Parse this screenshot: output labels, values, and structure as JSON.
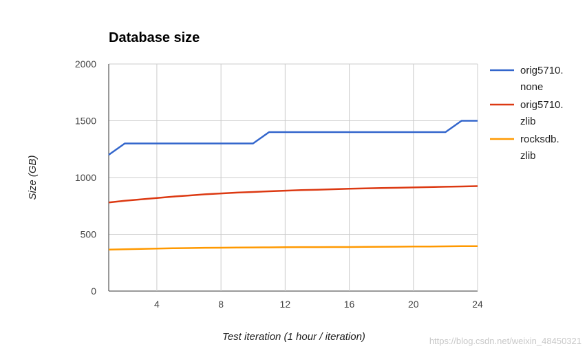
{
  "chart_data": {
    "type": "line",
    "title": "Database size",
    "xlabel": "Test iteration (1 hour / iteration)",
    "ylabel": "Size (GB)",
    "xlim": [
      1,
      24
    ],
    "ylim": [
      0,
      2000
    ],
    "xticks": [
      4,
      8,
      12,
      16,
      20,
      24
    ],
    "yticks": [
      0,
      500,
      1000,
      1500,
      2000
    ],
    "grid": true,
    "legend_position": "right",
    "x": [
      1,
      2,
      3,
      4,
      5,
      6,
      7,
      8,
      9,
      10,
      11,
      12,
      13,
      14,
      15,
      16,
      17,
      18,
      19,
      20,
      21,
      22,
      23,
      24
    ],
    "series": [
      {
        "name_lines": [
          "orig5710.",
          "none"
        ],
        "color": "#3366cc",
        "values": [
          1200,
          1300,
          1300,
          1300,
          1300,
          1300,
          1300,
          1300,
          1300,
          1300,
          1400,
          1400,
          1400,
          1400,
          1400,
          1400,
          1400,
          1400,
          1400,
          1400,
          1400,
          1400,
          1500,
          1500
        ]
      },
      {
        "name_lines": [
          "orig5710.",
          "zlib"
        ],
        "color": "#dc3912",
        "values": [
          780,
          795,
          808,
          820,
          832,
          842,
          852,
          860,
          867,
          873,
          879,
          884,
          889,
          893,
          897,
          901,
          904,
          907,
          910,
          913,
          916,
          919,
          921,
          924
        ]
      },
      {
        "name_lines": [
          "rocksdb.",
          "zlib"
        ],
        "color": "#ff9900",
        "values": [
          365,
          368,
          371,
          374,
          377,
          379,
          381,
          382,
          383,
          384,
          385,
          386,
          387,
          387,
          388,
          388,
          389,
          390,
          391,
          392,
          393,
          394,
          395,
          396
        ]
      }
    ]
  },
  "watermark": "https://blog.csdn.net/weixin_48450321"
}
